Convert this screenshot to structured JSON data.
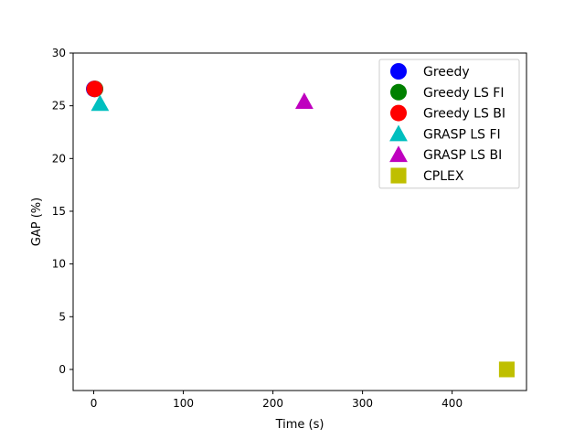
{
  "chart_data": {
    "type": "scatter",
    "title": "",
    "xlabel": "Time (s)",
    "ylabel": "GAP (%)",
    "xlim": [
      -23,
      483
    ],
    "ylim": [
      -2,
      30
    ],
    "xticks": [
      0,
      100,
      200,
      300,
      400
    ],
    "yticks": [
      0,
      5,
      10,
      15,
      20,
      25,
      30
    ],
    "grid": false,
    "legend_position": "top-right",
    "series": [
      {
        "name": "Greedy",
        "marker": "circle",
        "color": "#0000ff",
        "x": 0.5,
        "y": 26.6
      },
      {
        "name": "Greedy LS FI",
        "marker": "circle",
        "color": "#008000",
        "x": 1.5,
        "y": 26.6
      },
      {
        "name": "Greedy LS BI",
        "marker": "circle",
        "color": "#ff0000",
        "x": 1.0,
        "y": 26.6
      },
      {
        "name": "GRASP LS FI",
        "marker": "triangle",
        "color": "#00bfbf",
        "x": 7,
        "y": 25.2
      },
      {
        "name": "GRASP LS BI",
        "marker": "triangle",
        "color": "#bf00bf",
        "x": 235,
        "y": 25.4
      },
      {
        "name": "CPLEX",
        "marker": "square",
        "color": "#bfbf00",
        "x": 461,
        "y": 0
      }
    ]
  }
}
